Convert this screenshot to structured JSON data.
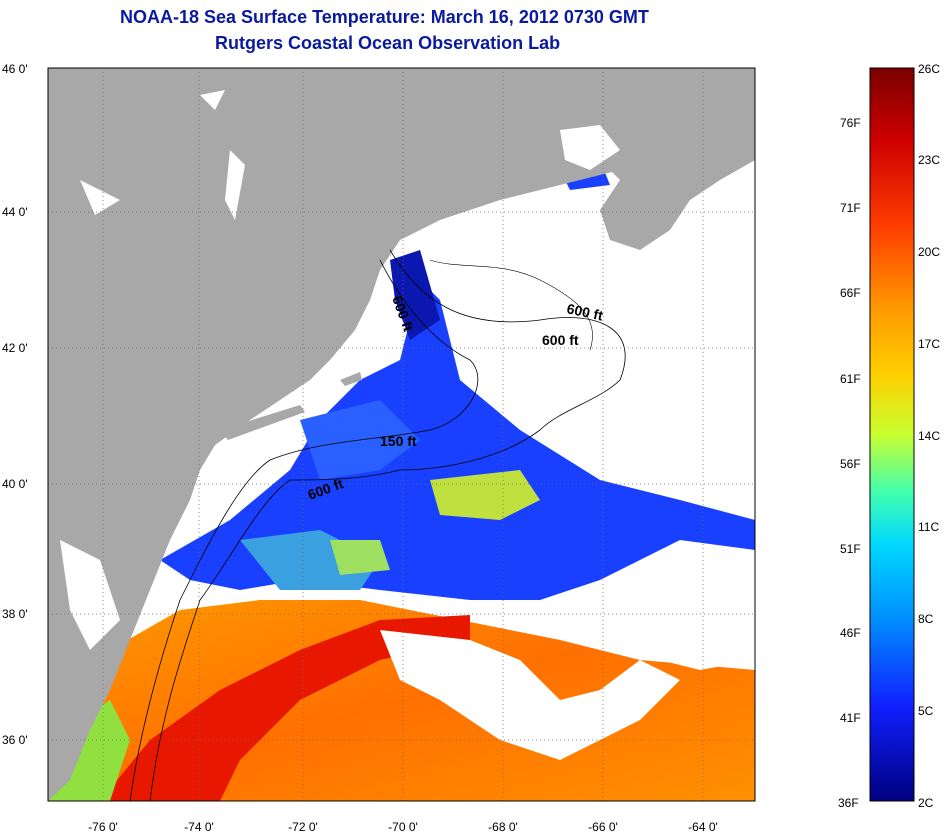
{
  "title": "NOAA-18 Sea Surface Temperature:  March 16, 2012 0730 GMT",
  "subtitle": "Rutgers Coastal Ocean Observation Lab",
  "lat_ticks": [
    "46 0'",
    "44 0'",
    "42 0'",
    "40 0'",
    "38 0'",
    "36 0'"
  ],
  "lon_ticks": [
    "-76 0'",
    "-74 0'",
    "-72 0'",
    "-70 0'",
    "-68 0'",
    "-66 0'",
    "-64 0'"
  ],
  "contour_labels": [
    "600 ft",
    "600 ft",
    "600 ft",
    "150 ft",
    "600 ft"
  ],
  "colorbar": {
    "celsius": [
      "26C",
      "23C",
      "20C",
      "17C",
      "14C",
      "11C",
      "8C",
      "5C",
      "2C"
    ],
    "fahrenheit": [
      "76F",
      "71F",
      "66F",
      "61F",
      "56F",
      "51F",
      "46F",
      "41F",
      "36F"
    ]
  },
  "colors": {
    "land": "#a8a8a8",
    "cloud": "#ffffff",
    "title": "#0a1aa0"
  }
}
